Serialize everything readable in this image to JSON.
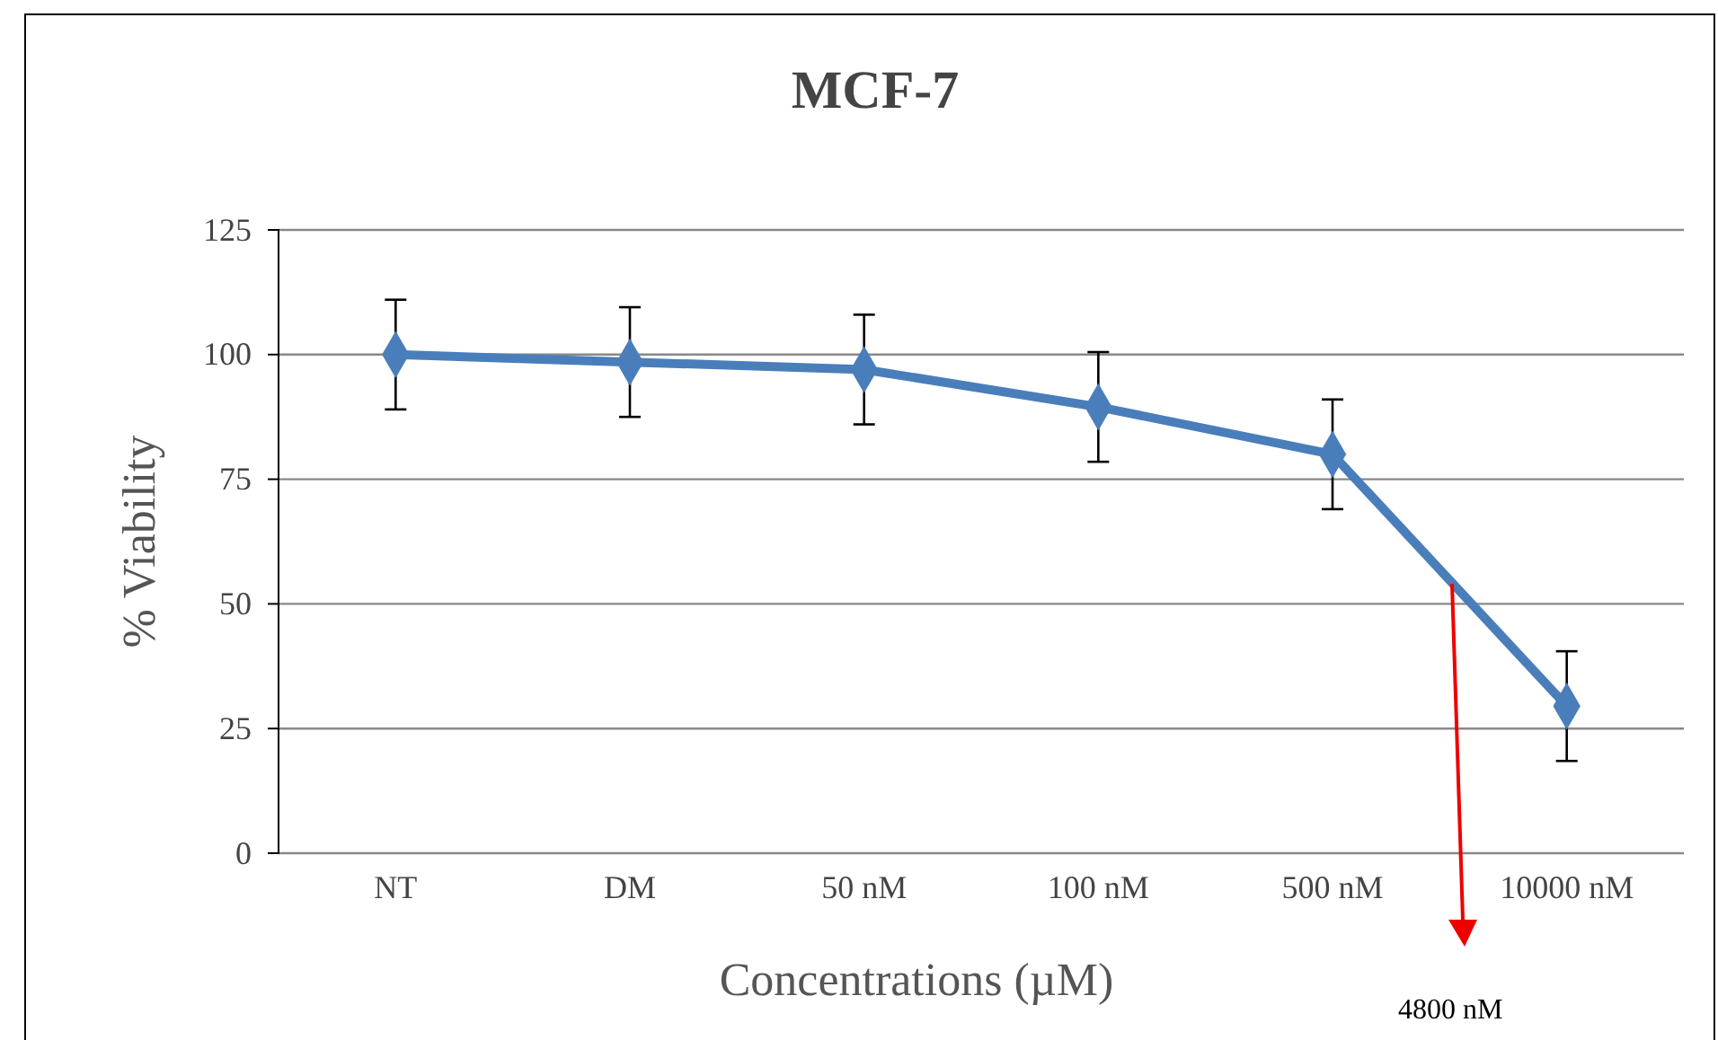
{
  "chart_data": {
    "type": "line",
    "title": "MCF-7",
    "xlabel": "Concentrations (µM)",
    "ylabel": "% Viability",
    "categories": [
      "NT",
      "DM",
      "50 nM",
      "100 nM",
      "500  nM",
      "10000 nM"
    ],
    "series": [
      {
        "color": "#4a7ebb",
        "values": [
          100,
          98.5,
          97,
          89.5,
          80,
          29.5
        ],
        "errors": [
          11,
          11,
          11,
          11,
          11,
          11
        ]
      }
    ],
    "ylim": [
      0,
      125
    ],
    "yticks": [
      0,
      25,
      50,
      75,
      100,
      125
    ],
    "grid": "y",
    "marker": "diamond",
    "line_style": "solid",
    "annotations": [
      "4800  nM"
    ]
  }
}
